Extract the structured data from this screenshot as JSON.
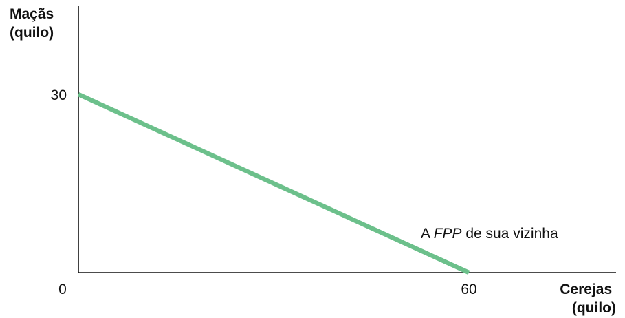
{
  "chart_data": {
    "type": "line",
    "title": "",
    "ylabel_lines": [
      "Maçãs",
      "(quilo)"
    ],
    "xlabel_lines": [
      "Cerejas",
      "(quilo)"
    ],
    "xlim": [
      0,
      60
    ],
    "ylim": [
      0,
      30
    ],
    "x_ticks": [
      "0",
      "60"
    ],
    "y_ticks": [
      "30"
    ],
    "grid": false,
    "series": [
      {
        "color": "#6cc08b",
        "points": [
          {
            "x": 0,
            "y": 30
          },
          {
            "x": 60,
            "y": 0
          }
        ]
      }
    ],
    "annotation": {
      "prefix": "A ",
      "emphasis": "FPP",
      "suffix": " de sua vizinha"
    },
    "axis_color": "#111111"
  }
}
